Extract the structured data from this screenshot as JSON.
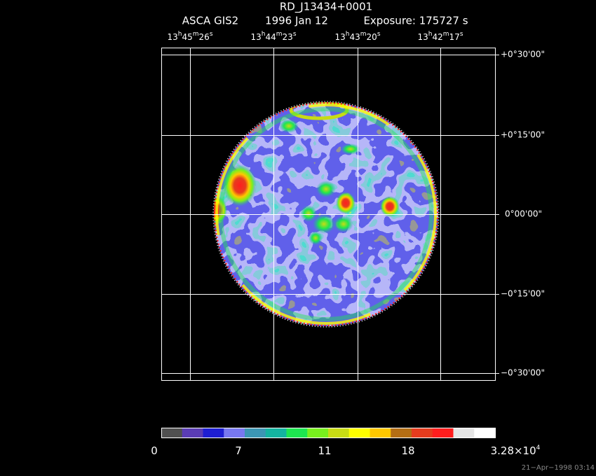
{
  "header": {
    "title": "RD_J13434+0001",
    "subtitle": [
      "ASCA GIS2",
      "1996 Jan 12",
      "Exposure: 175727 s"
    ]
  },
  "ra_labels": [
    [
      "13",
      "h",
      "45",
      "m",
      "26",
      "s"
    ],
    [
      "13",
      "h",
      "44",
      "m",
      "23",
      "s"
    ],
    [
      "13",
      "h",
      "43",
      "m",
      "20",
      "s"
    ],
    [
      "13",
      "h",
      "42",
      "m",
      "17",
      "s"
    ]
  ],
  "dec_labels": [
    "+0°30'00\"",
    "+0°15'00\"",
    "0°00'00\"",
    "−0°15'00\"",
    "−0°30'00\""
  ],
  "colorbar": {
    "colors": [
      "#505050",
      "#5a3cb4",
      "#1e1ed2",
      "#7878f0",
      "#3c96b4",
      "#14b4a0",
      "#1ee650",
      "#78f01e",
      "#c8dc14",
      "#ffff00",
      "#ffc800",
      "#b46e14",
      "#e63c1e",
      "#ff1e1e",
      "#e6e6e6",
      "#ffffff"
    ],
    "labels": [
      [
        "0"
      ],
      [
        "7"
      ],
      [
        "11"
      ],
      [
        "18"
      ],
      [
        "3.28×10",
        "4"
      ]
    ]
  },
  "timestamp": "21−Apr−1998 03:14"
}
